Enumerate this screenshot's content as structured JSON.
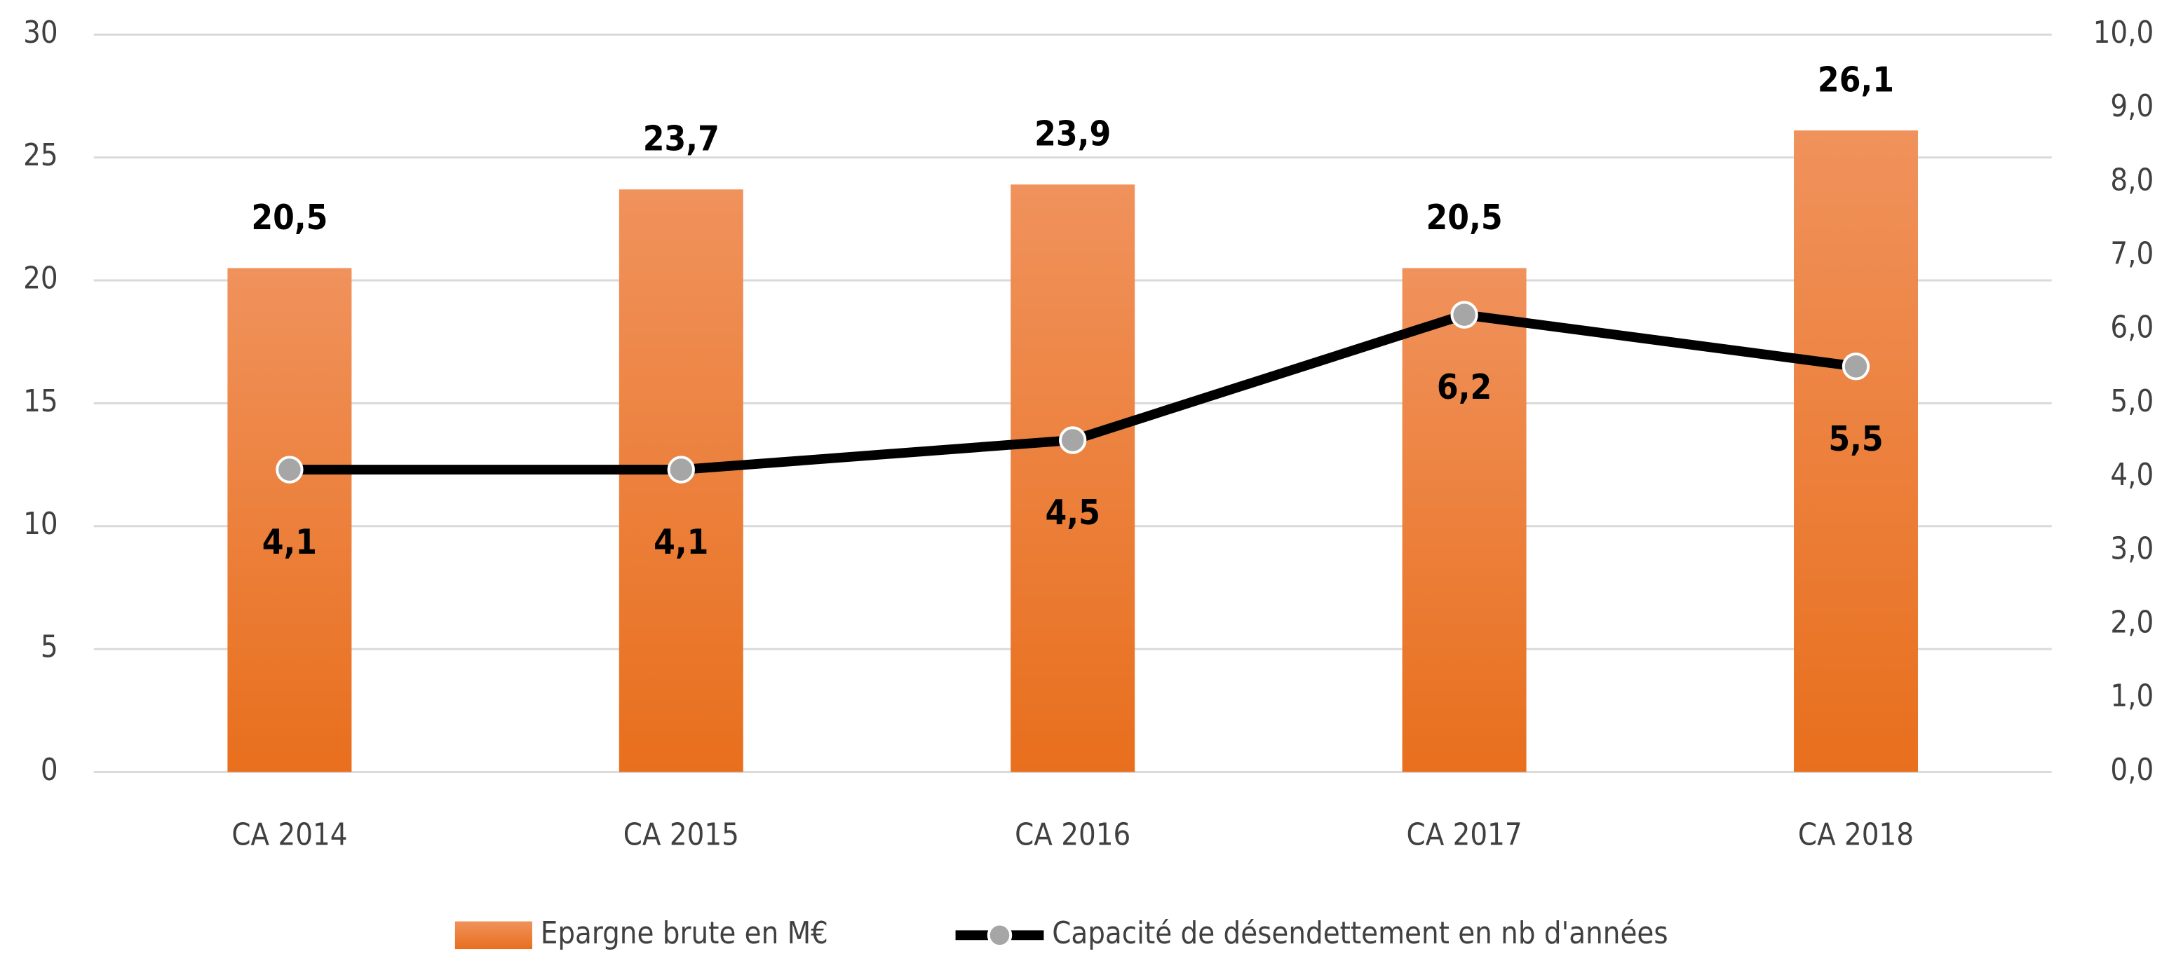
{
  "chart_data": {
    "type": "bar",
    "categories": [
      "CA 2014",
      "CA 2015",
      "CA 2016",
      "CA 2017",
      "CA 2018"
    ],
    "series": [
      {
        "name": "Epargne brute en M€",
        "type": "bar",
        "color": "#ed7d31",
        "values": [
          20.5,
          23.7,
          23.9,
          20.5,
          26.1
        ],
        "value_labels": [
          "20,5",
          "23,7",
          "23,9",
          "20,5",
          "26,1"
        ]
      },
      {
        "name": "Capacité de désendettement en nb d'années",
        "type": "line",
        "axis": "y2",
        "color": "#000000",
        "marker_color": "#a6a6a6",
        "values": [
          4.1,
          4.1,
          4.5,
          6.2,
          5.5
        ],
        "value_labels": [
          "4,1",
          "4,1",
          "4,5",
          "6,2",
          "5,5"
        ]
      }
    ],
    "ylim": [
      0,
      30
    ],
    "yticks": [
      0,
      5,
      10,
      15,
      20,
      25,
      30
    ],
    "y2lim": [
      0,
      10
    ],
    "y2ticks": [
      {
        "value": 0,
        "label": "0,0"
      },
      {
        "value": 1,
        "label": "1,0"
      },
      {
        "value": 2,
        "label": "2,0"
      },
      {
        "value": 3,
        "label": "3,0"
      },
      {
        "value": 4,
        "label": "4,0"
      },
      {
        "value": 5,
        "label": "5,0"
      },
      {
        "value": 6,
        "label": "6,0"
      },
      {
        "value": 7,
        "label": "7,0"
      },
      {
        "value": 8,
        "label": "8,0"
      },
      {
        "value": 9,
        "label": "9,0"
      },
      {
        "value": 10,
        "label": "10,0"
      }
    ],
    "grid": true,
    "legend": "bottom"
  }
}
